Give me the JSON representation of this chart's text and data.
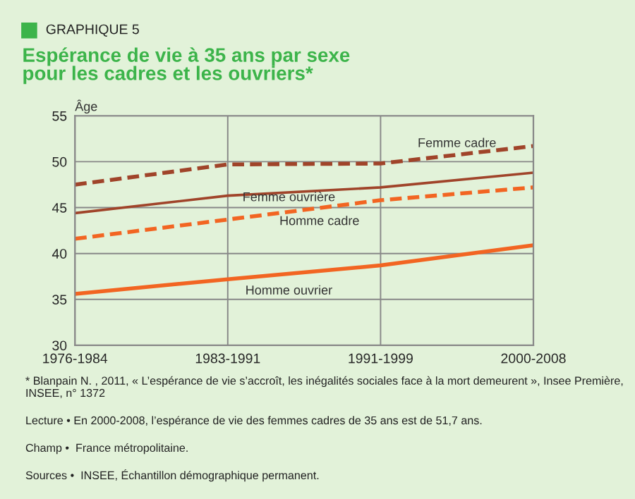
{
  "chart_data": {
    "type": "line",
    "title": "Espérance de vie à 35 ans par sexe\npour les cadres et les ouvriers*",
    "ylabel": "Âge",
    "categories": [
      "1976-1984",
      "1983-1991",
      "1991-1999",
      "2000-2008"
    ],
    "series": [
      {
        "name": "Femme cadre",
        "color": "#a0442a",
        "line_style": "dashed",
        "values": [
          47.5,
          49.7,
          49.8,
          51.7
        ]
      },
      {
        "name": "Femme ouvrière",
        "color": "#a0442a",
        "line_style": "solid",
        "values": [
          44.4,
          46.3,
          47.2,
          48.8
        ]
      },
      {
        "name": "Homme cadre",
        "color": "#f26522",
        "line_style": "dashed",
        "values": [
          41.6,
          43.7,
          45.8,
          47.2
        ]
      },
      {
        "name": "Homme ouvrier",
        "color": "#f26522",
        "line_style": "solid",
        "values": [
          35.6,
          37.2,
          38.7,
          40.9
        ]
      }
    ],
    "ylim": [
      30,
      55
    ],
    "yticks": [
      30,
      35,
      40,
      45,
      50,
      55
    ],
    "grid": true,
    "legend": false,
    "marker": "none",
    "annotations": [
      "GRAPHIQUE 5",
      "* Blanpain N. , 2011, « L’espérance de vie s’accroît, les inégalités sociales face à la mort demeurent », Insee Première, INSEE, n° 1372",
      "Lecture • En 2000-2008, l’espérance de vie des femmes cadres de 35 ans est de 51,7 ans.",
      "Champ •  France métropolitaine.",
      "Sources •  INSEE, Échantillon démographique permanent."
    ]
  }
}
